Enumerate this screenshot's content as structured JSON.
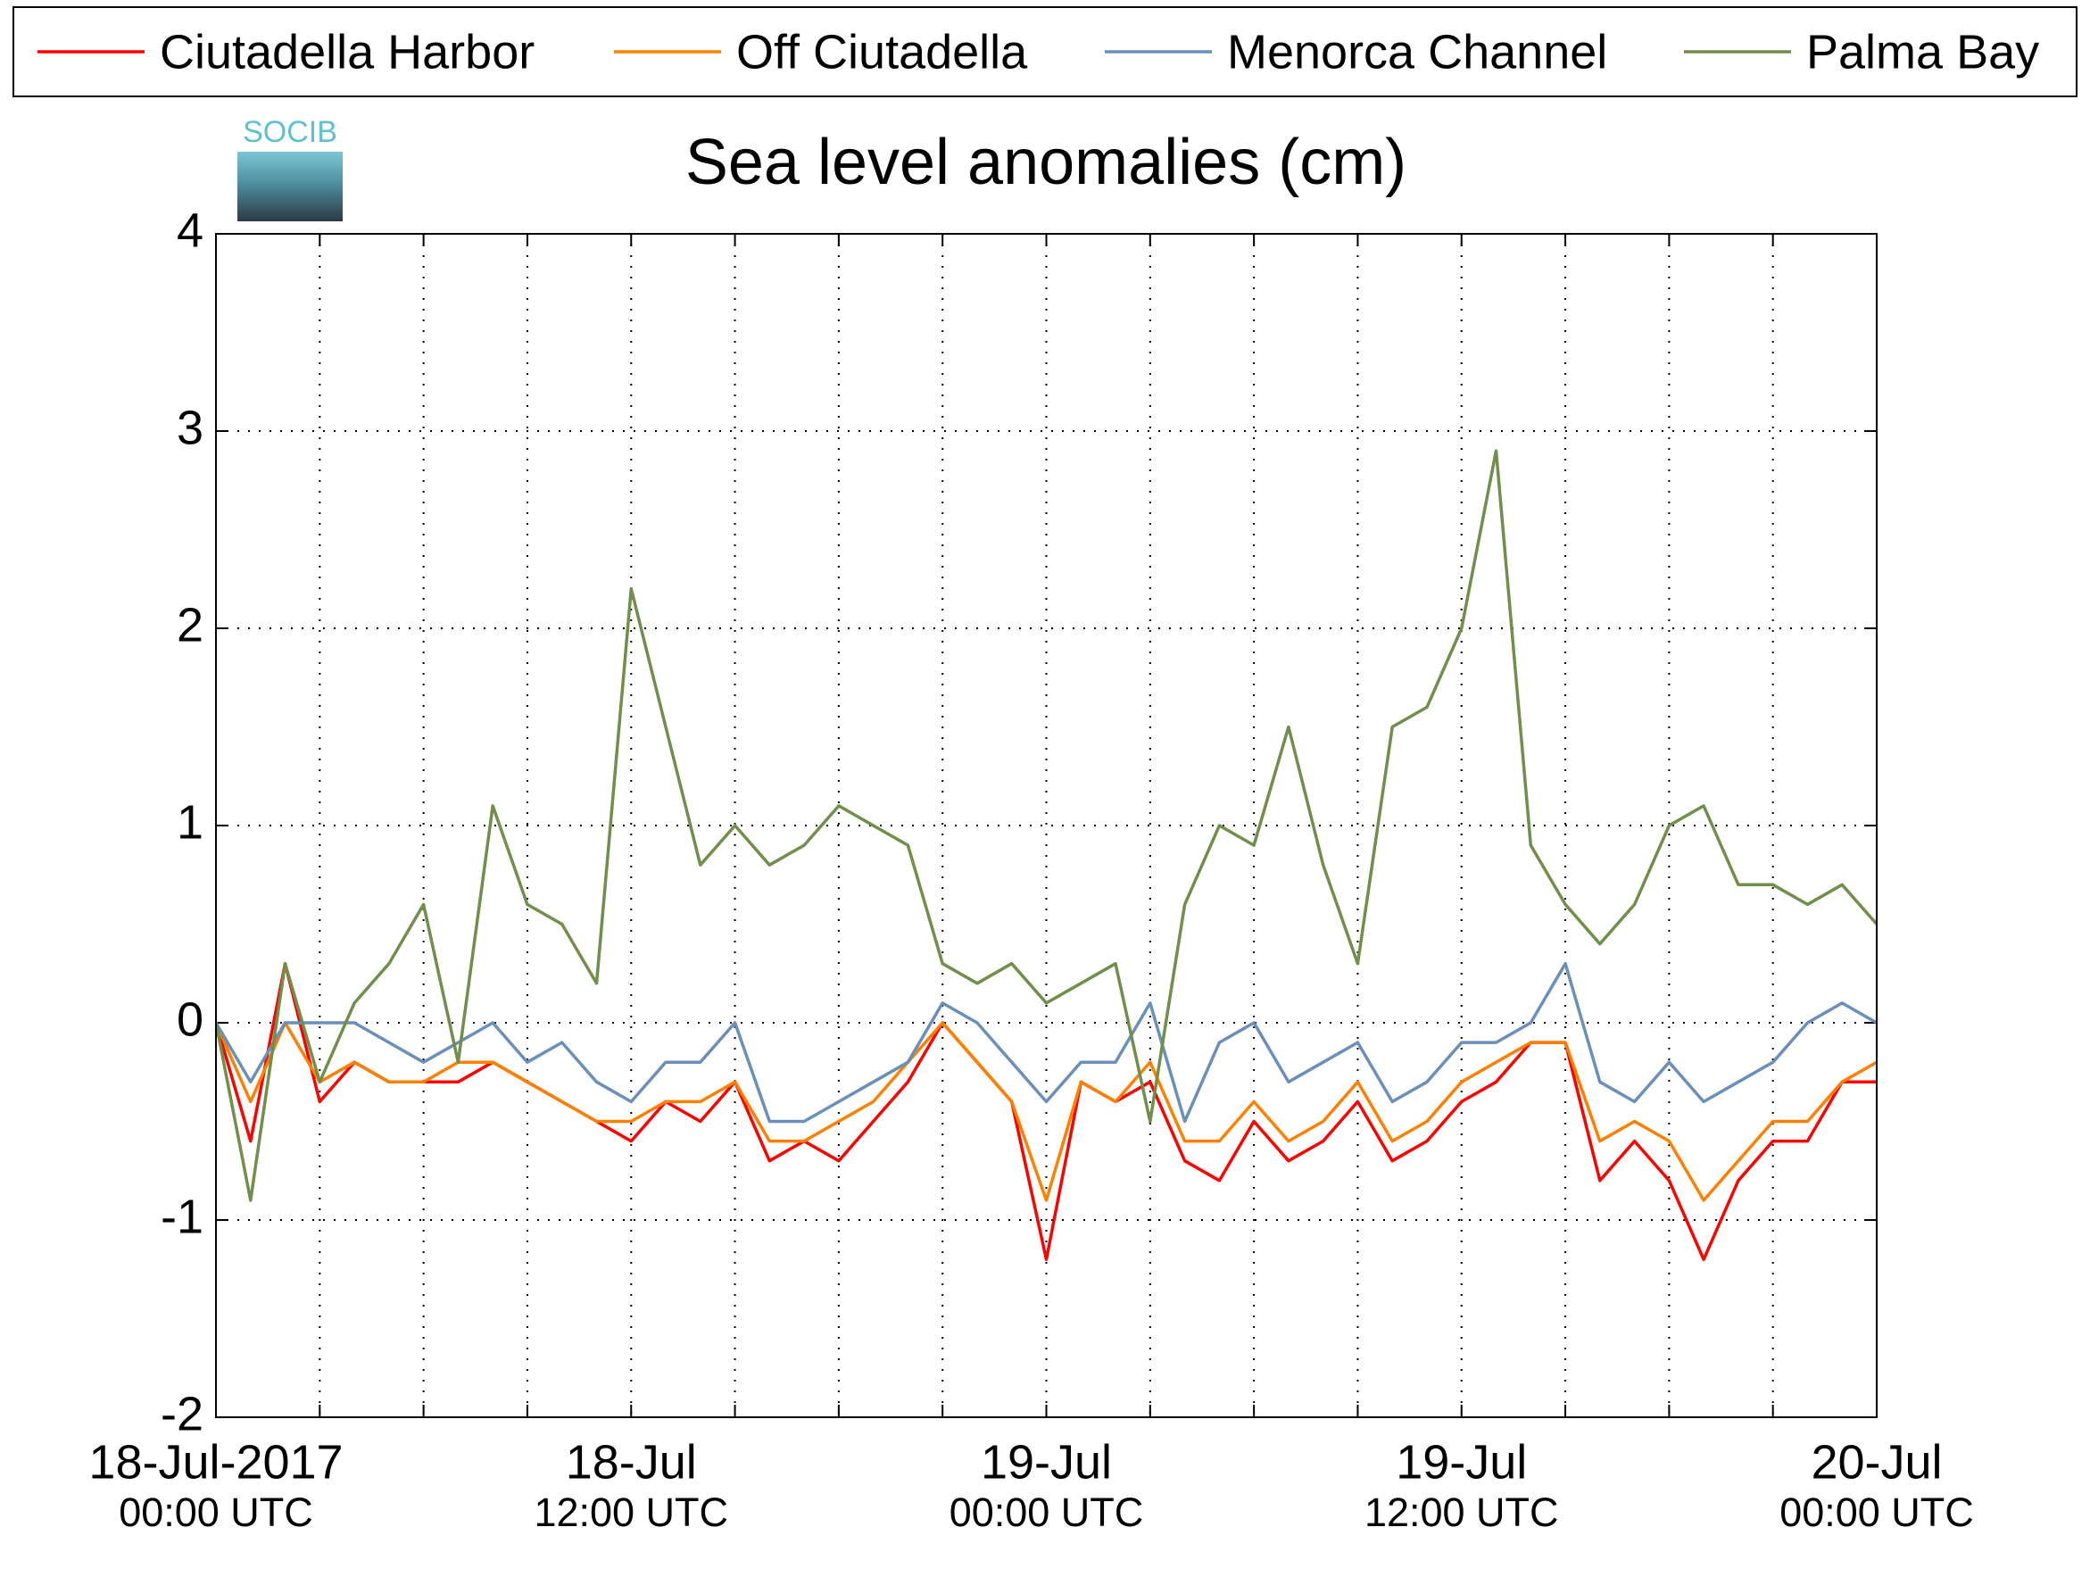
{
  "chart_data": {
    "type": "line",
    "title": "Sea level anomalies (cm)",
    "logo_text": "SOCIB",
    "legend": "top-outside",
    "grid": true,
    "x": [
      "2017-07-18T00:00",
      "2017-07-18T01:00",
      "2017-07-18T02:00",
      "2017-07-18T03:00",
      "2017-07-18T04:00",
      "2017-07-18T05:00",
      "2017-07-18T06:00",
      "2017-07-18T07:00",
      "2017-07-18T08:00",
      "2017-07-18T09:00",
      "2017-07-18T10:00",
      "2017-07-18T11:00",
      "2017-07-18T12:00",
      "2017-07-18T13:00",
      "2017-07-18T14:00",
      "2017-07-18T15:00",
      "2017-07-18T16:00",
      "2017-07-18T17:00",
      "2017-07-18T18:00",
      "2017-07-18T19:00",
      "2017-07-18T20:00",
      "2017-07-18T21:00",
      "2017-07-18T22:00",
      "2017-07-18T23:00",
      "2017-07-19T00:00",
      "2017-07-19T01:00",
      "2017-07-19T02:00",
      "2017-07-19T03:00",
      "2017-07-19T04:00",
      "2017-07-19T05:00",
      "2017-07-19T06:00",
      "2017-07-19T07:00",
      "2017-07-19T08:00",
      "2017-07-19T09:00",
      "2017-07-19T10:00",
      "2017-07-19T11:00",
      "2017-07-19T12:00",
      "2017-07-19T13:00",
      "2017-07-19T14:00",
      "2017-07-19T15:00",
      "2017-07-19T16:00",
      "2017-07-19T17:00",
      "2017-07-19T18:00",
      "2017-07-19T19:00",
      "2017-07-19T20:00",
      "2017-07-19T21:00",
      "2017-07-19T22:00",
      "2017-07-19T23:00",
      "2017-07-20T00:00"
    ],
    "xlim": [
      "2017-07-18T00:00",
      "2017-07-20T00:00"
    ],
    "xticks": [
      {
        "value": "2017-07-18T00:00",
        "label": "18-Jul-2017",
        "sublabel": "00:00 UTC"
      },
      {
        "value": "2017-07-18T03:00",
        "label": null
      },
      {
        "value": "2017-07-18T06:00",
        "label": null
      },
      {
        "value": "2017-07-18T09:00",
        "label": null
      },
      {
        "value": "2017-07-18T12:00",
        "label": "18-Jul",
        "sublabel": "12:00 UTC"
      },
      {
        "value": "2017-07-18T15:00",
        "label": null
      },
      {
        "value": "2017-07-18T18:00",
        "label": null
      },
      {
        "value": "2017-07-18T21:00",
        "label": null
      },
      {
        "value": "2017-07-19T00:00",
        "label": "19-Jul",
        "sublabel": "00:00 UTC"
      },
      {
        "value": "2017-07-19T03:00",
        "label": null
      },
      {
        "value": "2017-07-19T06:00",
        "label": null
      },
      {
        "value": "2017-07-19T09:00",
        "label": null
      },
      {
        "value": "2017-07-19T12:00",
        "label": "19-Jul",
        "sublabel": "12:00 UTC"
      },
      {
        "value": "2017-07-19T15:00",
        "label": null
      },
      {
        "value": "2017-07-19T18:00",
        "label": null
      },
      {
        "value": "2017-07-19T21:00",
        "label": null
      },
      {
        "value": "2017-07-20T00:00",
        "label": "20-Jul",
        "sublabel": "00:00 UTC"
      }
    ],
    "ylim": [
      -2,
      4
    ],
    "yticks": [
      -2,
      -1,
      0,
      1,
      2,
      3,
      4
    ],
    "series": [
      {
        "name": "Ciutadella Harbor",
        "color": "#ff0000",
        "values": [
          0.0,
          -0.6,
          0.3,
          -0.4,
          -0.2,
          -0.3,
          -0.3,
          -0.3,
          -0.2,
          -0.3,
          -0.4,
          -0.5,
          -0.6,
          -0.4,
          -0.5,
          -0.3,
          -0.7,
          -0.6,
          -0.7,
          -0.5,
          -0.3,
          0.0,
          -0.2,
          -0.4,
          -1.2,
          -0.3,
          -0.4,
          -0.3,
          -0.7,
          -0.8,
          -0.5,
          -0.7,
          -0.6,
          -0.4,
          -0.7,
          -0.6,
          -0.4,
          -0.3,
          -0.1,
          -0.1,
          -0.8,
          -0.6,
          -0.8,
          -1.2,
          -0.8,
          -0.6,
          -0.6,
          -0.3,
          -0.3
        ]
      },
      {
        "name": "Off Ciutadella",
        "color": "#ff8000",
        "values": [
          0.0,
          -0.4,
          0.0,
          -0.3,
          -0.2,
          -0.3,
          -0.3,
          -0.2,
          -0.2,
          -0.3,
          -0.4,
          -0.5,
          -0.5,
          -0.4,
          -0.4,
          -0.3,
          -0.6,
          -0.6,
          -0.5,
          -0.4,
          -0.2,
          0.0,
          -0.2,
          -0.4,
          -0.9,
          -0.3,
          -0.4,
          -0.2,
          -0.6,
          -0.6,
          -0.4,
          -0.6,
          -0.5,
          -0.3,
          -0.6,
          -0.5,
          -0.3,
          -0.2,
          -0.1,
          -0.1,
          -0.6,
          -0.5,
          -0.6,
          -0.9,
          -0.7,
          -0.5,
          -0.5,
          -0.3,
          -0.2
        ]
      },
      {
        "name": "Menorca Channel",
        "color": "#6a8fba",
        "values": [
          0.0,
          -0.3,
          0.0,
          0.0,
          0.0,
          -0.1,
          -0.2,
          -0.1,
          0.0,
          -0.2,
          -0.1,
          -0.3,
          -0.4,
          -0.2,
          -0.2,
          0.0,
          -0.5,
          -0.5,
          -0.4,
          -0.3,
          -0.2,
          0.1,
          0.0,
          -0.2,
          -0.4,
          -0.2,
          -0.2,
          0.1,
          -0.5,
          -0.1,
          0.0,
          -0.3,
          -0.2,
          -0.1,
          -0.4,
          -0.3,
          -0.1,
          -0.1,
          0.0,
          0.3,
          -0.3,
          -0.4,
          -0.2,
          -0.4,
          -0.3,
          -0.2,
          0.0,
          0.1,
          0.0
        ]
      },
      {
        "name": "Palma Bay",
        "color": "#6f8f4a",
        "values": [
          0.0,
          -0.9,
          0.3,
          -0.3,
          0.1,
          0.3,
          0.6,
          -0.2,
          1.1,
          0.6,
          0.5,
          0.2,
          2.2,
          1.5,
          0.8,
          1.0,
          0.8,
          0.9,
          1.1,
          1.0,
          0.9,
          0.3,
          0.2,
          0.3,
          0.1,
          0.2,
          0.3,
          -0.5,
          0.6,
          1.0,
          0.9,
          1.5,
          0.8,
          0.3,
          1.5,
          1.6,
          2.0,
          2.9,
          0.9,
          0.6,
          0.4,
          0.6,
          1.0,
          1.1,
          0.7,
          0.7,
          0.6,
          0.7,
          0.5
        ]
      }
    ]
  }
}
